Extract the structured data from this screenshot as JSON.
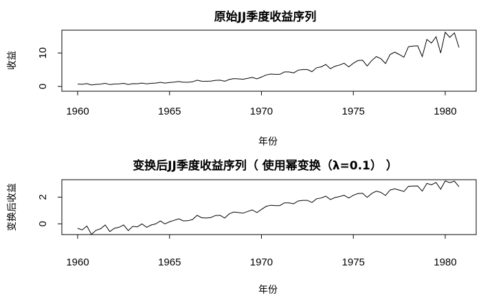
{
  "chart_data": [
    {
      "type": "line",
      "title": "原始JJ季度收益序列",
      "xlabel": "年份",
      "ylabel": "收益",
      "xlim": [
        1960,
        1980.75
      ],
      "ylim": [
        0,
        16.2
      ],
      "x_ticks": [
        "1960",
        "1965",
        "1970",
        "1975",
        "1980"
      ],
      "y_ticks": [
        "0",
        "10"
      ],
      "series": [
        {
          "x_start": 1960,
          "x_step": 0.25,
          "values": [
            0.71,
            0.63,
            0.85,
            0.44,
            0.61,
            0.69,
            0.92,
            0.55,
            0.72,
            0.77,
            0.92,
            0.6,
            0.83,
            0.8,
            1.0,
            0.77,
            0.92,
            1.0,
            1.24,
            1.0,
            1.16,
            1.3,
            1.45,
            1.25,
            1.26,
            1.38,
            1.86,
            1.56,
            1.53,
            1.59,
            1.83,
            1.86,
            1.53,
            2.07,
            2.34,
            2.25,
            2.16,
            2.43,
            2.7,
            2.25,
            2.79,
            3.42,
            3.69,
            3.6,
            3.6,
            4.32,
            4.32,
            4.05,
            4.86,
            5.04,
            5.04,
            4.41,
            5.58,
            5.85,
            6.57,
            5.31,
            6.03,
            6.39,
            6.93,
            5.85,
            6.93,
            7.74,
            7.83,
            6.12,
            7.74,
            8.91,
            8.28,
            6.84,
            9.54,
            10.26,
            9.54,
            8.73,
            11.88,
            12.06,
            12.15,
            8.91,
            14.04,
            12.96,
            14.85,
            9.99,
            16.2,
            14.67,
            16.02,
            11.61
          ]
        }
      ]
    },
    {
      "type": "line",
      "title": "变换后JJ季度收益序列（ 使用幂变换（λ=0.1） ）",
      "xlabel": "年份",
      "ylabel": "变换后收益",
      "xlim": [
        1960,
        1980.75
      ],
      "ylim": [
        -0.7,
        3.2
      ],
      "x_ticks": [
        "1960",
        "1965",
        "1970",
        "1975",
        "1980"
      ],
      "y_ticks": [
        "0",
        "2"
      ],
      "series": [
        {
          "x_start": 1960,
          "x_step": 0.25,
          "transform": "power",
          "lambda": 0.1
        }
      ]
    }
  ]
}
